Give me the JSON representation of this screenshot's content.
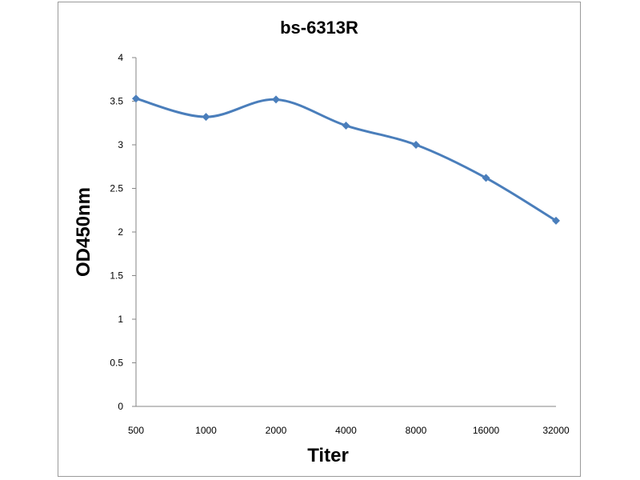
{
  "chart_data": {
    "type": "line",
    "title": "bs-6313R",
    "xlabel": "Titer",
    "ylabel": "OD450nm",
    "categories": [
      "500",
      "1000",
      "2000",
      "4000",
      "8000",
      "16000",
      "32000"
    ],
    "series": [
      {
        "values": [
          3.53,
          3.32,
          3.52,
          3.22,
          3.0,
          2.62,
          2.13
        ],
        "color": "#4a7ebb"
      }
    ],
    "ylim": [
      0,
      4
    ],
    "yticks": [
      "0",
      "0.5",
      "1",
      "1.5",
      "2",
      "2.5",
      "3",
      "3.5",
      "4"
    ],
    "grid": false,
    "legend": "none",
    "marker": "diamond"
  }
}
